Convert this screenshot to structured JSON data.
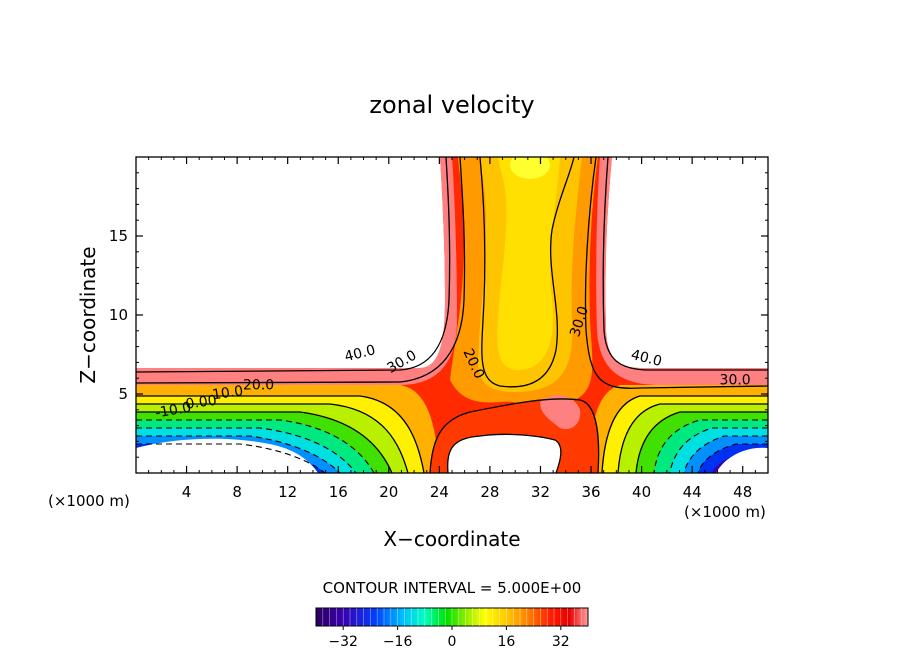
{
  "chart_data": {
    "type": "contour",
    "title": "zonal velocity",
    "xlabel": "X−coordinate",
    "ylabel": "Z−coordinate",
    "x_unit_label": "(×1000 m)",
    "z_unit_label": "(×1000 m)",
    "xlim": [
      0,
      50
    ],
    "ylim": [
      0,
      20
    ],
    "x_ticks": [
      4,
      8,
      12,
      16,
      20,
      24,
      28,
      32,
      36,
      40,
      44,
      48
    ],
    "y_ticks": [
      5,
      10,
      15
    ],
    "contour_interval_text": "CONTOUR INTERVAL = 5.000E+00",
    "contour_interval": 5.0,
    "colorbar": {
      "range": [
        -40,
        40
      ],
      "ticks": [
        -32,
        -16,
        0,
        16,
        32
      ],
      "colors": [
        "#2b0060",
        "#3a00b0",
        "#0040ff",
        "#00c0ff",
        "#00ffc0",
        "#00e000",
        "#a0f000",
        "#ffff00",
        "#ffc800",
        "#ff8000",
        "#ff2000",
        "#e80000",
        "#ffa0a0"
      ]
    },
    "contour_labels": [
      {
        "text": "40.0",
        "x": 17.8,
        "z": 7.3,
        "rot": -14
      },
      {
        "text": "30.0",
        "x": 21.2,
        "z": 6.8,
        "rot": -30
      },
      {
        "text": "20.0",
        "x": 26.4,
        "z": 6.8,
        "rot": 65
      },
      {
        "text": "30.0",
        "x": 35.4,
        "z": 9.5,
        "rot": -72
      },
      {
        "text": "40.0",
        "x": 40.3,
        "z": 7.0,
        "rot": 14
      },
      {
        "text": "30.0",
        "x": 47.4,
        "z": 5.6,
        "rot": 0
      },
      {
        "text": "20.0",
        "x": 9.7,
        "z": 5.3,
        "rot": 0
      },
      {
        "text": "10.0",
        "x": 7.3,
        "z": 4.8,
        "rot": -8
      },
      {
        "text": "0.00",
        "x": 5.2,
        "z": 4.2,
        "rot": -8
      },
      {
        "text": "-10.0",
        "x": 3.0,
        "z": 3.7,
        "rot": -10
      }
    ]
  }
}
